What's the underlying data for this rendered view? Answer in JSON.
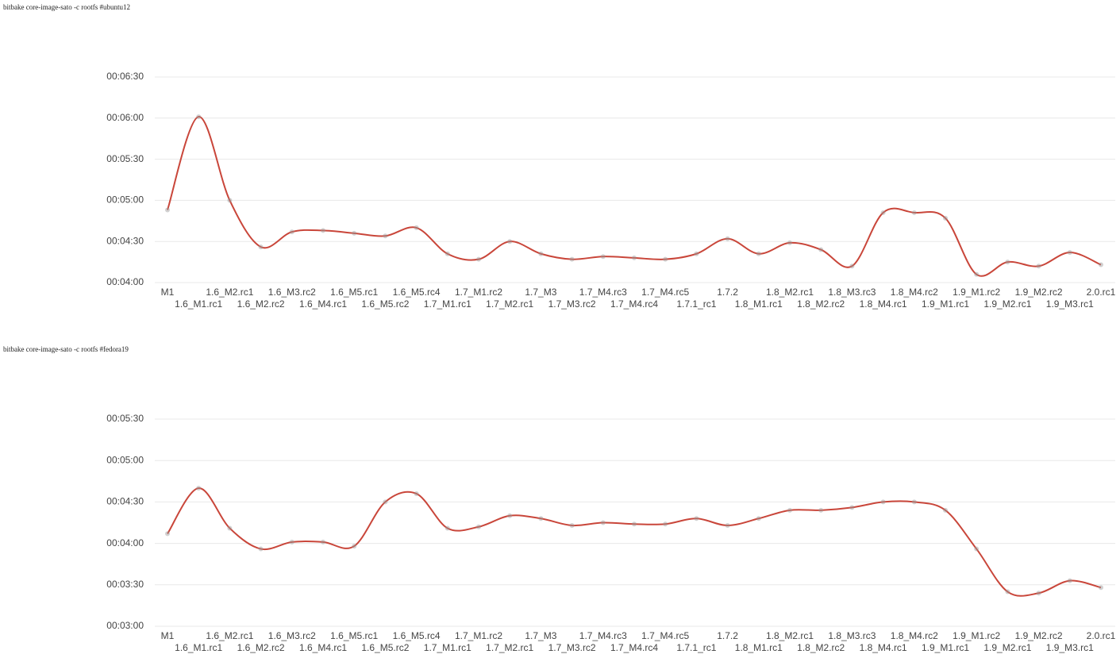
{
  "chart_data": [
    {
      "type": "line",
      "title": "bitbake core-image-sato -c rootfs #ubuntu12",
      "categories": [
        "M1",
        "1.6_M1.rc1",
        "1.6_M2.rc1",
        "1.6_M2.rc2",
        "1.6_M3.rc2",
        "1.6_M4.rc1",
        "1.6_M5.rc1",
        "1.6_M5.rc2",
        "1.6_M5.rc4",
        "1.7_M1.rc1",
        "1.7_M1.rc2",
        "1.7_M2.rc1",
        "1.7_M3",
        "1.7_M3.rc2",
        "1.7_M4.rc3",
        "1.7_M4.rc4",
        "1.7_M4.rc5",
        "1.7.1_rc1",
        "1.7.2",
        "1.8_M1.rc1",
        "1.8_M2.rc1",
        "1.8_M2.rc2",
        "1.8_M3.rc3",
        "1.8_M4.rc1",
        "1.8_M4.rc2",
        "1.9_M1.rc1",
        "1.9_M1.rc2",
        "1.9_M2.rc1",
        "1.9_M2.rc2",
        "1.9_M3.rc1",
        "2.0.rc1"
      ],
      "values": [
        293,
        361,
        300,
        266,
        277,
        278,
        276,
        274,
        280,
        261,
        257,
        270,
        261,
        257,
        259,
        258,
        257,
        261,
        272,
        261,
        269,
        264,
        252,
        291,
        291,
        287,
        246,
        255,
        252,
        262,
        253
      ],
      "color": "#c9463a",
      "ylim": [
        240,
        390
      ],
      "yticks": [
        {
          "value": 240,
          "label": "00:04:00"
        },
        {
          "value": 270,
          "label": "00:04:30"
        },
        {
          "value": 300,
          "label": "00:05:00"
        },
        {
          "value": 330,
          "label": "00:05:30"
        },
        {
          "value": 360,
          "label": "00:06:00"
        },
        {
          "value": 390,
          "label": "00:06:30"
        }
      ],
      "grid": true
    },
    {
      "type": "line",
      "title": "bitbake core-image-sato -c rootfs #fedora19",
      "categories": [
        "M1",
        "1.6_M1.rc1",
        "1.6_M2.rc1",
        "1.6_M2.rc2",
        "1.6_M3.rc2",
        "1.6_M4.rc1",
        "1.6_M5.rc1",
        "1.6_M5.rc2",
        "1.6_M5.rc4",
        "1.7_M1.rc1",
        "1.7_M1.rc2",
        "1.7_M2.rc1",
        "1.7_M3",
        "1.7_M3.rc2",
        "1.7_M4.rc3",
        "1.7_M4.rc4",
        "1.7_M4.rc5",
        "1.7.1_rc1",
        "1.7.2",
        "1.8_M1.rc1",
        "1.8_M2.rc1",
        "1.8_M2.rc2",
        "1.8_M3.rc3",
        "1.8_M4.rc1",
        "1.8_M4.rc2",
        "1.9_M1.rc1",
        "1.9_M1.rc2",
        "1.9_M2.rc1",
        "1.9_M2.rc2",
        "1.9_M3.rc1",
        "2.0.rc1"
      ],
      "values": [
        247,
        280,
        251,
        236,
        241,
        241,
        238,
        270,
        276,
        251,
        252,
        260,
        258,
        253,
        255,
        254,
        254,
        258,
        253,
        258,
        264,
        264,
        266,
        270,
        270,
        264,
        236,
        205,
        204,
        213,
        208
      ],
      "color": "#c9463a",
      "ylim": [
        180,
        330
      ],
      "yticks": [
        {
          "value": 180,
          "label": "00:03:00"
        },
        {
          "value": 210,
          "label": "00:03:30"
        },
        {
          "value": 240,
          "label": "00:04:00"
        },
        {
          "value": 270,
          "label": "00:04:30"
        },
        {
          "value": 300,
          "label": "00:05:00"
        },
        {
          "value": 330,
          "label": "00:05:30"
        }
      ],
      "grid": true
    }
  ]
}
